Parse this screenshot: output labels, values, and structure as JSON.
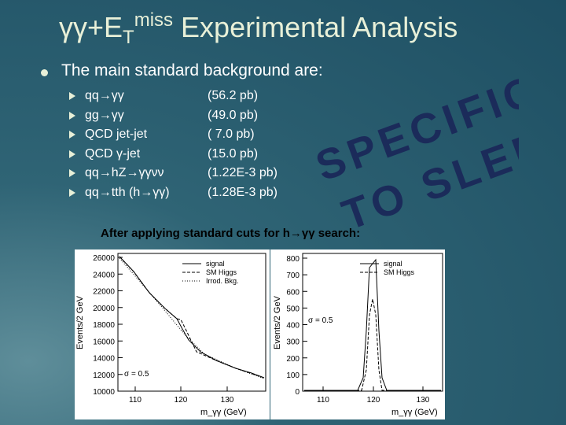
{
  "title": {
    "main": "γγ+E",
    "subscript": "T",
    "superscript": "miss",
    "rest": " Experimental Analysis"
  },
  "bullet": "The main standard background are:",
  "backgrounds": [
    {
      "process": "qq→γγ",
      "cross_section": "(56.2 pb)"
    },
    {
      "process": "gg→γγ",
      "cross_section": "(49.0 pb)"
    },
    {
      "process": "QCD jet-jet",
      "cross_section": "( 7.0 pb)"
    },
    {
      "process": "QCD γ-jet",
      "cross_section": "(15.0 pb)"
    },
    {
      "process": "qq→hZ→γγνν",
      "cross_section": "(1.22E-3 pb)"
    },
    {
      "process": "qq→tth (h→γγ)",
      "cross_section": "(1.28E-3 pb)"
    }
  ],
  "stamp": [
    "SPECIFIC",
    "TO SLED"
  ],
  "caption": "After applying standard cuts for h→γγ search:",
  "plots": [
    {
      "y_label": "Events/2 GeV",
      "y_ticks": [
        "26000",
        "24000",
        "22000",
        "20000",
        "18000",
        "16000",
        "14000",
        "12000",
        "10000"
      ],
      "x_ticks": [
        "110",
        "120",
        "130"
      ],
      "x_label": "m_γγ (GeV)",
      "legend": [
        "signal",
        "SM Higgs",
        "Irrod. Bkg."
      ],
      "annotation": "σ = 0.5"
    },
    {
      "y_label": "Events/2 GeV",
      "y_ticks": [
        "800",
        "700",
        "600",
        "500",
        "400",
        "300",
        "200",
        "100",
        "0"
      ],
      "x_ticks": [
        "110",
        "120",
        "130"
      ],
      "x_label": "m_γγ (GeV)",
      "legend": [
        "signal",
        "SM Higgs"
      ],
      "annotation": "σ = 0.5"
    }
  ]
}
